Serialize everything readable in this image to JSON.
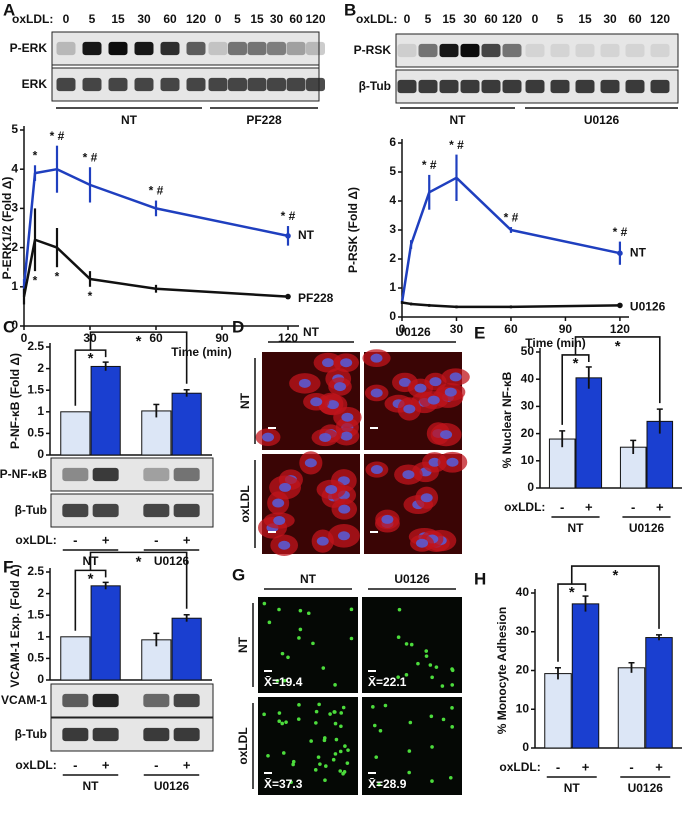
{
  "panel_labels": [
    "A",
    "B",
    "C",
    "D",
    "E",
    "F",
    "G",
    "H"
  ],
  "blots": {
    "A": {
      "treatment_label": "oxLDL:",
      "lanes": [
        "0",
        "5",
        "15",
        "30",
        "60",
        "120",
        "0",
        "5",
        "15",
        "30",
        "60",
        "120"
      ],
      "rows": [
        "P-ERK",
        "ERK"
      ],
      "groups": [
        "NT",
        "PF228"
      ]
    },
    "B": {
      "treatment_label": "oxLDL:",
      "lanes": [
        "0",
        "5",
        "15",
        "30",
        "60",
        "120",
        "0",
        "5",
        "15",
        "30",
        "60",
        "120"
      ],
      "rows": [
        "P-RSK",
        "β-Tub"
      ],
      "groups": [
        "NT",
        "U0126"
      ]
    },
    "C": {
      "rows": [
        "P-NF-κB",
        "β-Tub"
      ]
    },
    "F": {
      "rows": [
        "VCAM-1",
        "β-Tub"
      ]
    }
  },
  "micrographs": {
    "D": {
      "columns": [
        "NT",
        "U0126"
      ],
      "rows": [
        "NT",
        "oxLDL"
      ]
    },
    "G": {
      "columns": [
        "NT",
        "U0126"
      ],
      "rows": [
        "NT",
        "oxLDL"
      ],
      "means": [
        "X̄=19.4",
        "X̄=22.1",
        "X̄=37.3",
        "X̄=28.9"
      ]
    }
  },
  "chart_data": [
    {
      "type": "line",
      "y_label": "P-ERK1/2 (Fold Δ)",
      "x_label": "Time (min)",
      "x": [
        0,
        5,
        15,
        30,
        60,
        120
      ],
      "xlim": [
        0,
        125
      ],
      "xticks": [
        0,
        30,
        60,
        90,
        120
      ],
      "ylim": [
        0,
        5
      ],
      "yticks": [
        0,
        1,
        2,
        3,
        4,
        5
      ],
      "series": [
        {
          "name": "NT",
          "color": "#1f3fbf",
          "values": [
            1.0,
            3.9,
            4.0,
            3.6,
            3.0,
            2.3
          ],
          "errors": [
            0.2,
            0.2,
            0.6,
            0.45,
            0.2,
            0.25
          ],
          "significance": [
            null,
            "*",
            "* #",
            "* #",
            "* #",
            "* #"
          ]
        },
        {
          "name": "PF228",
          "color": "#111111",
          "values": [
            0.75,
            2.2,
            2.0,
            1.2,
            0.95,
            0.75
          ],
          "errors": [
            0.2,
            0.8,
            0.5,
            0.2,
            0.1,
            0.05
          ],
          "significance": [
            null,
            "*",
            "*",
            "*",
            null,
            null
          ]
        }
      ]
    },
    {
      "type": "line",
      "y_label": "P-RSK (Fold Δ)",
      "x_label": "Time (min)",
      "x": [
        0,
        5,
        15,
        30,
        60,
        120
      ],
      "xlim": [
        0,
        125
      ],
      "xticks": [
        0,
        30,
        60,
        90,
        120
      ],
      "ylim": [
        0,
        6
      ],
      "yticks": [
        0,
        1,
        2,
        3,
        4,
        5,
        6
      ],
      "series": [
        {
          "name": "NT",
          "color": "#1f3fbf",
          "values": [
            0.5,
            2.5,
            4.3,
            4.8,
            3.0,
            2.2
          ],
          "errors": [
            0.05,
            0.15,
            0.6,
            0.8,
            0.1,
            0.4
          ],
          "significance": [
            null,
            null,
            "* #",
            "* #",
            "* #",
            "* #"
          ]
        },
        {
          "name": "U0126",
          "color": "#111111",
          "values": [
            0.5,
            0.45,
            0.4,
            0.35,
            0.35,
            0.4
          ],
          "errors": [
            0.05,
            0.05,
            0.05,
            0.05,
            0.05,
            0.05
          ]
        }
      ]
    },
    {
      "type": "bar",
      "y_label": "P-NF-κB (Fold Δ)",
      "ylim": [
        0,
        2.5
      ],
      "yticks": [
        0,
        0.5,
        1,
        1.5,
        2,
        2.5
      ],
      "categories": [
        "NT",
        "U0126"
      ],
      "legend_label": "oxLDL:",
      "series": [
        {
          "name": "-",
          "color": "#dce6f6",
          "values": [
            1,
            1.02
          ],
          "errors": [
            null,
            0.15
          ]
        },
        {
          "name": "+",
          "color": "#1a3fd0",
          "values": [
            2.05,
            1.43
          ],
          "errors": [
            0.1,
            0.08
          ]
        }
      ],
      "significance": [
        "*",
        "*"
      ]
    },
    {
      "type": "bar",
      "y_label": "% Nuclear NF-κB",
      "ylim": [
        0,
        50
      ],
      "yticks": [
        0,
        10,
        20,
        30,
        40,
        50
      ],
      "categories": [
        "NT",
        "U0126"
      ],
      "legend_label": "oxLDL:",
      "series": [
        {
          "name": "-",
          "color": "#dce6f6",
          "values": [
            18,
            15
          ],
          "errors": [
            3,
            2.5
          ]
        },
        {
          "name": "+",
          "color": "#1a3fd0",
          "values": [
            40.5,
            24.5
          ],
          "errors": [
            4,
            4.5
          ]
        }
      ],
      "significance": [
        "*",
        "*"
      ]
    },
    {
      "type": "bar",
      "y_label": "VCAM-1 Exp. (Fold Δ)",
      "ylim": [
        0,
        2.5
      ],
      "yticks": [
        0,
        0.5,
        1,
        1.5,
        2,
        2.5
      ],
      "categories": [
        "NT",
        "U0126"
      ],
      "legend_label": "oxLDL:",
      "series": [
        {
          "name": "-",
          "color": "#dce6f6",
          "values": [
            1,
            0.93
          ],
          "errors": [
            null,
            0.15
          ]
        },
        {
          "name": "+",
          "color": "#1a3fd0",
          "values": [
            2.18,
            1.43
          ],
          "errors": [
            0.08,
            0.08
          ]
        }
      ],
      "significance": [
        "*",
        "*"
      ]
    },
    {
      "type": "bar",
      "y_label": "% Monocyte Adhesion",
      "ylim": [
        0,
        40
      ],
      "yticks": [
        0,
        10,
        20,
        30,
        40
      ],
      "categories": [
        "NT",
        "U0126"
      ],
      "legend_label": "oxLDL:",
      "series": [
        {
          "name": "-",
          "color": "#dce6f6",
          "values": [
            19.2,
            20.7
          ],
          "errors": [
            1.5,
            1.3
          ]
        },
        {
          "name": "+",
          "color": "#1a3fd0",
          "values": [
            37.2,
            28.5
          ],
          "errors": [
            2,
            0.7
          ]
        }
      ],
      "significance": [
        "*",
        "*"
      ]
    }
  ]
}
